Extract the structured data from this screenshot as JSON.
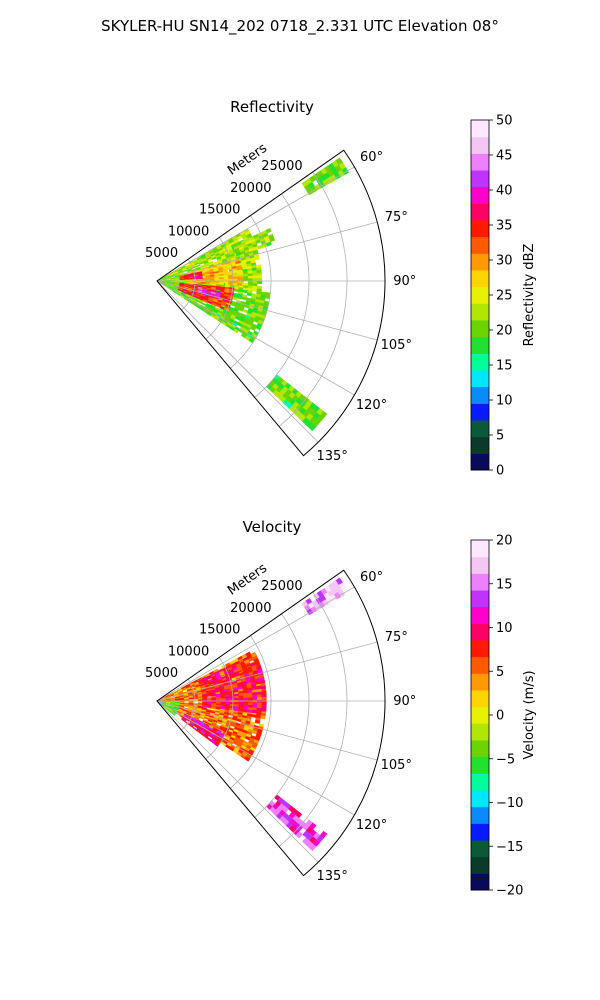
{
  "suptitle": "SKYLER-HU  SN14_202  0718_2.331 UTC Elevation 08°",
  "chart_data": [
    {
      "type": "heatmap",
      "projection": "polar-sector",
      "title": "Reflectivity",
      "range_label": "Meters",
      "azimuth_range_deg": [
        55,
        140
      ],
      "range_max_m": 30000,
      "range_ticks": [
        5000,
        10000,
        15000,
        20000,
        25000
      ],
      "range_tick_labels": [
        "5000",
        "10000",
        "15000",
        "20000",
        "25000"
      ],
      "azimuth_ticks": [
        60,
        75,
        90,
        105,
        120,
        135
      ],
      "azimuth_tick_labels": [
        "60°",
        "75°",
        "90°",
        "105°",
        "120°",
        "135°"
      ],
      "grid": true,
      "colorbar": {
        "label": "Reflectivity dBZ",
        "range": [
          0,
          50
        ],
        "ticks": [
          0,
          5,
          10,
          15,
          20,
          25,
          30,
          35,
          40,
          45,
          50
        ],
        "tick_labels": [
          "0",
          "5",
          "10",
          "15",
          "20",
          "25",
          "30",
          "35",
          "40",
          "45",
          "50"
        ],
        "colors": [
          "#0a0a5a",
          "#0a3a2a",
          "#0a5a3a",
          "#0a1aff",
          "#0a8aff",
          "#00e8ff",
          "#00ff9a",
          "#22e030",
          "#6ad400",
          "#b0e600",
          "#e6f000",
          "#ffd400",
          "#ff9a00",
          "#ff5a00",
          "#ff1a00",
          "#ff0066",
          "#ff00cc",
          "#c033ff",
          "#ee80ff",
          "#f4c6f4",
          "#ffe8ff"
        ]
      },
      "echo_regions": [
        {
          "az": [
            60,
            96
          ],
          "r": [
            0,
            13500
          ],
          "value": 22
        },
        {
          "az": [
            96,
            123
          ],
          "r": [
            0,
            14500
          ],
          "value": 20
        },
        {
          "az": [
            75,
            92
          ],
          "r": [
            4000,
            11000
          ],
          "value": 28
        },
        {
          "az": [
            95,
            112
          ],
          "r": [
            3000,
            10000
          ],
          "value": 34
        },
        {
          "az": [
            100,
            106
          ],
          "r": [
            5500,
            8000
          ],
          "value": 42
        },
        {
          "az": [
            78,
            86
          ],
          "r": [
            3000,
            6000
          ],
          "value": 36
        },
        {
          "az": [
            65,
            72
          ],
          "r": [
            11000,
            16000
          ],
          "value": 22
        },
        {
          "az": [
            56,
            60
          ],
          "r": [
            23000,
            29000
          ],
          "value": 20
        },
        {
          "az": [
            128,
            134
          ],
          "r": [
            20000,
            28000
          ],
          "value": 20
        }
      ]
    },
    {
      "type": "heatmap",
      "projection": "polar-sector",
      "title": "Velocity",
      "range_label": "Meters",
      "azimuth_range_deg": [
        55,
        140
      ],
      "range_max_m": 30000,
      "range_ticks": [
        5000,
        10000,
        15000,
        20000,
        25000
      ],
      "range_tick_labels": [
        "5000",
        "10000",
        "15000",
        "20000",
        "25000"
      ],
      "azimuth_ticks": [
        60,
        75,
        90,
        105,
        120,
        135
      ],
      "azimuth_tick_labels": [
        "60°",
        "75°",
        "90°",
        "105°",
        "120°",
        "135°"
      ],
      "grid": true,
      "colorbar": {
        "label": "Velocity (m/s)",
        "range": [
          -20,
          20
        ],
        "ticks": [
          -20,
          -15,
          -10,
          -5,
          0,
          5,
          10,
          15,
          20
        ],
        "tick_labels": [
          "−20",
          "−15",
          "−10",
          "−5",
          "0",
          "5",
          "10",
          "15",
          "20"
        ],
        "colors": [
          "#0a0a5a",
          "#0a3a2a",
          "#0a5a3a",
          "#0a1aff",
          "#0a8aff",
          "#00e8ff",
          "#00ff9a",
          "#22e030",
          "#6ad400",
          "#b0e600",
          "#e6f000",
          "#ffd400",
          "#ff9a00",
          "#ff5a00",
          "#ff1a00",
          "#ff0066",
          "#ff00cc",
          "#c033ff",
          "#ee80ff",
          "#f4c6f4",
          "#ffe8ff"
        ]
      },
      "echo_regions": [
        {
          "az": [
            62,
            123
          ],
          "r": [
            0,
            14000
          ],
          "value": 5
        },
        {
          "az": [
            64,
            96
          ],
          "r": [
            6000,
            14000
          ],
          "value": 8
        },
        {
          "az": [
            90,
            130
          ],
          "r": [
            0,
            3000
          ],
          "value": -4
        },
        {
          "az": [
            115,
            126
          ],
          "r": [
            4000,
            10000
          ],
          "value": 10
        },
        {
          "az": [
            56,
            60
          ],
          "r": [
            23000,
            29000
          ],
          "value": 16
        },
        {
          "az": [
            128,
            134
          ],
          "r": [
            20000,
            28000
          ],
          "value": 13
        }
      ]
    }
  ]
}
